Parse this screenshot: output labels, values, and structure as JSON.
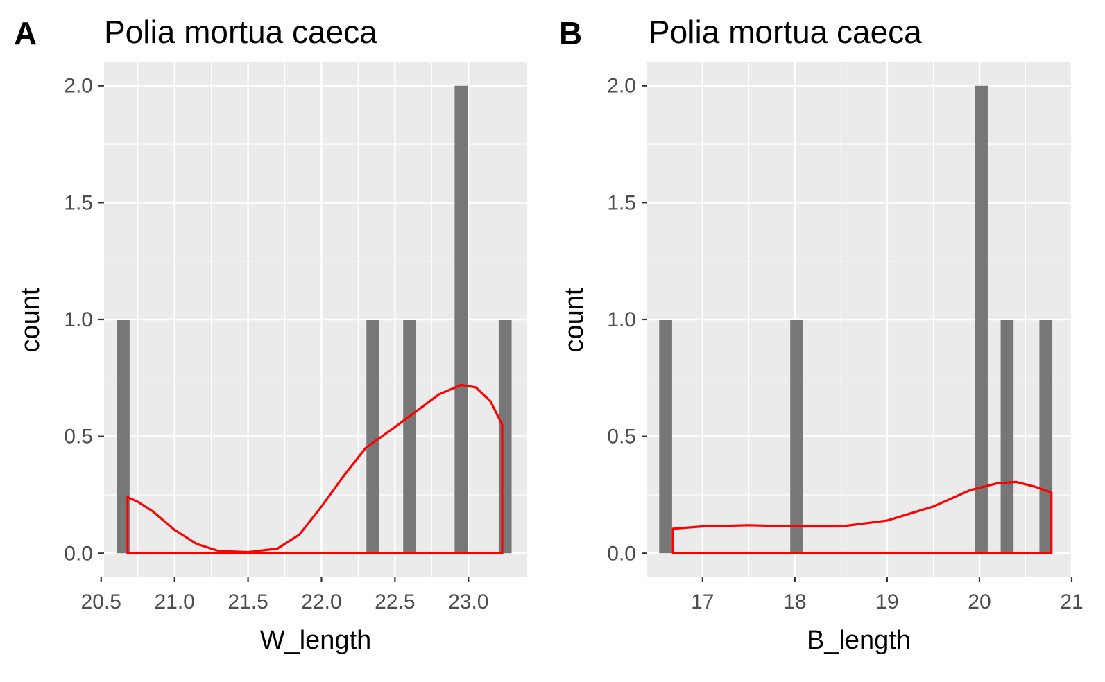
{
  "chart_data": [
    {
      "type": "bar",
      "panel_tag": "A",
      "title": "Polia mortua caeca",
      "xlabel": "W_length",
      "ylabel": "count",
      "xlim": [
        20.52,
        23.4
      ],
      "ylim": [
        -0.1,
        2.1
      ],
      "x_ticks": [
        20.5,
        21.0,
        21.5,
        22.0,
        22.5,
        23.0
      ],
      "x_tick_labels": [
        "20.5",
        "21.0",
        "21.5",
        "22.0",
        "22.5",
        "23.0"
      ],
      "y_ticks": [
        0,
        0.5,
        1,
        1.5,
        2
      ],
      "y_tick_labels": [
        "0.0",
        "0.5",
        "1.0",
        "1.5",
        "2.0"
      ],
      "bars": [
        {
          "x": 20.65,
          "count": 1
        },
        {
          "x": 22.35,
          "count": 1
        },
        {
          "x": 22.6,
          "count": 1
        },
        {
          "x": 22.95,
          "count": 2
        },
        {
          "x": 23.25,
          "count": 1
        }
      ],
      "bar_width": 0.088,
      "bar_color": "#777777",
      "density": {
        "color": "#ff0000",
        "points": [
          [
            20.68,
            0.24
          ],
          [
            20.75,
            0.22
          ],
          [
            20.85,
            0.18
          ],
          [
            21.0,
            0.1
          ],
          [
            21.15,
            0.04
          ],
          [
            21.3,
            0.01
          ],
          [
            21.5,
            0.005
          ],
          [
            21.7,
            0.02
          ],
          [
            21.85,
            0.08
          ],
          [
            22.0,
            0.2
          ],
          [
            22.15,
            0.33
          ],
          [
            22.3,
            0.45
          ],
          [
            22.5,
            0.54
          ],
          [
            22.65,
            0.61
          ],
          [
            22.8,
            0.68
          ],
          [
            22.95,
            0.72
          ],
          [
            23.05,
            0.71
          ],
          [
            23.15,
            0.65
          ],
          [
            23.23,
            0.55
          ]
        ]
      },
      "grid": true,
      "panel_background": "#ebebeb"
    },
    {
      "type": "bar",
      "panel_tag": "B",
      "title": "Polia mortua caeca",
      "xlabel": "B_length",
      "ylabel": "count",
      "xlim": [
        16.4,
        21.0
      ],
      "ylim": [
        -0.1,
        2.1
      ],
      "x_ticks": [
        17,
        18,
        19,
        20,
        21
      ],
      "x_tick_labels": [
        "17",
        "18",
        "19",
        "20",
        "21"
      ],
      "y_ticks": [
        0,
        0.5,
        1,
        1.5,
        2
      ],
      "y_tick_labels": [
        "0.0",
        "0.5",
        "1.0",
        "1.5",
        "2.0"
      ],
      "bars": [
        {
          "x": 16.6,
          "count": 1
        },
        {
          "x": 18.02,
          "count": 1
        },
        {
          "x": 20.02,
          "count": 2
        },
        {
          "x": 20.3,
          "count": 1
        },
        {
          "x": 20.72,
          "count": 1
        }
      ],
      "bar_width": 0.14,
      "bar_color": "#777777",
      "density": {
        "color": "#ff0000",
        "points": [
          [
            16.68,
            0.105
          ],
          [
            17.0,
            0.115
          ],
          [
            17.5,
            0.12
          ],
          [
            18.0,
            0.115
          ],
          [
            18.5,
            0.115
          ],
          [
            19.0,
            0.14
          ],
          [
            19.5,
            0.2
          ],
          [
            19.9,
            0.27
          ],
          [
            20.2,
            0.3
          ],
          [
            20.4,
            0.305
          ],
          [
            20.6,
            0.285
          ],
          [
            20.78,
            0.26
          ]
        ]
      },
      "grid": true,
      "panel_background": "#ebebeb"
    }
  ]
}
